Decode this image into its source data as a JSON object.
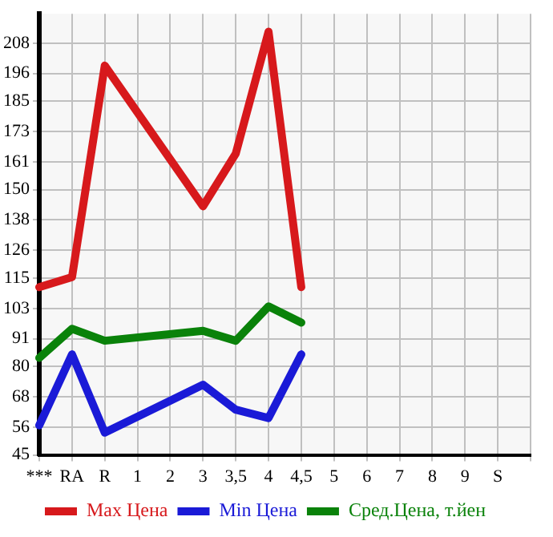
{
  "chart_data": {
    "type": "line",
    "categories": [
      "***",
      "RA",
      "R",
      "1",
      "2",
      "3",
      "3,5",
      "4",
      "4,5",
      "5",
      "6",
      "7",
      "8",
      "9",
      "S",
      null
    ],
    "series": [
      {
        "name": "Max Цена",
        "color": "#d7191c",
        "values": [
          111.4,
          115.4,
          199.1,
          null,
          null,
          143.4,
          164.3,
          212.5,
          111.4,
          null,
          null,
          null,
          null,
          null,
          null,
          null
        ]
      },
      {
        "name": "Min Цена",
        "color": "#1a1ad7",
        "values": [
          56.7,
          84.8,
          53.8,
          null,
          null,
          72.8,
          62.9,
          59.6,
          84.8,
          null,
          null,
          null,
          null,
          null,
          null,
          null
        ]
      },
      {
        "name": "Сред.Цена, т.йен",
        "color": "#0a820a",
        "values": [
          83.4,
          94.9,
          90.2,
          null,
          null,
          94.1,
          90.2,
          103.8,
          97.4,
          null,
          null,
          null,
          null,
          null,
          null,
          null
        ]
      }
    ],
    "ylim": [
      45,
      219.6
    ],
    "yticks": [
      45,
      56,
      68,
      80,
      91,
      103,
      115,
      126,
      138,
      150,
      161,
      173,
      185,
      196,
      208
    ],
    "grid": true,
    "legend": "bottom",
    "marker": "none",
    "line_style": "solid"
  }
}
